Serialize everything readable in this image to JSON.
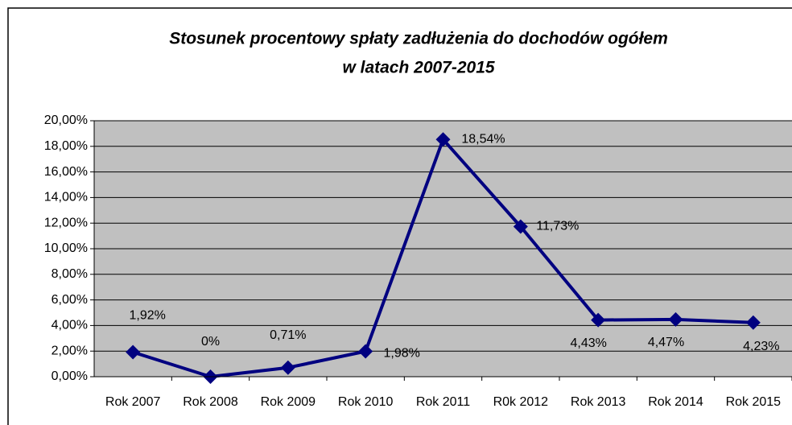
{
  "chart_data": {
    "type": "line",
    "title": [
      "Stosunek procentowy spłaty zadłużenia do dochodów ogółem",
      "w latach 2007-2015"
    ],
    "categories": [
      "Rok 2007",
      "Rok 2008",
      "Rok 2009",
      "Rok 2010",
      "Rok 2011",
      "R0k 2012",
      "Rok 2013",
      "Rok 2014",
      "Rok 2015"
    ],
    "series": [
      {
        "name": "Stosunek procentowy",
        "color": "#000080",
        "values": [
          1.92,
          0,
          0.71,
          1.98,
          18.54,
          11.73,
          4.43,
          4.47,
          4.23
        ],
        "value_labels": [
          "1,92%",
          "0%",
          "0,71%",
          "1,98%",
          "18,54%",
          "11,73%",
          "4,43%",
          "4,47%",
          "4,23%"
        ]
      }
    ],
    "ylim": [
      0,
      20
    ],
    "yticks": [
      {
        "value": 0,
        "label": "0,00%"
      },
      {
        "value": 2,
        "label": "2,00%"
      },
      {
        "value": 4,
        "label": "4,00%"
      },
      {
        "value": 6,
        "label": "6,00%"
      },
      {
        "value": 8,
        "label": "8,00%"
      },
      {
        "value": 10,
        "label": "10,00%"
      },
      {
        "value": 12,
        "label": "12,00%"
      },
      {
        "value": 14,
        "label": "14,00%"
      },
      {
        "value": 16,
        "label": "16,00%"
      },
      {
        "value": 18,
        "label": "18,00%"
      },
      {
        "value": 20,
        "label": "20,00%"
      }
    ],
    "grid": true,
    "plot_background": "#c0c0c0"
  }
}
